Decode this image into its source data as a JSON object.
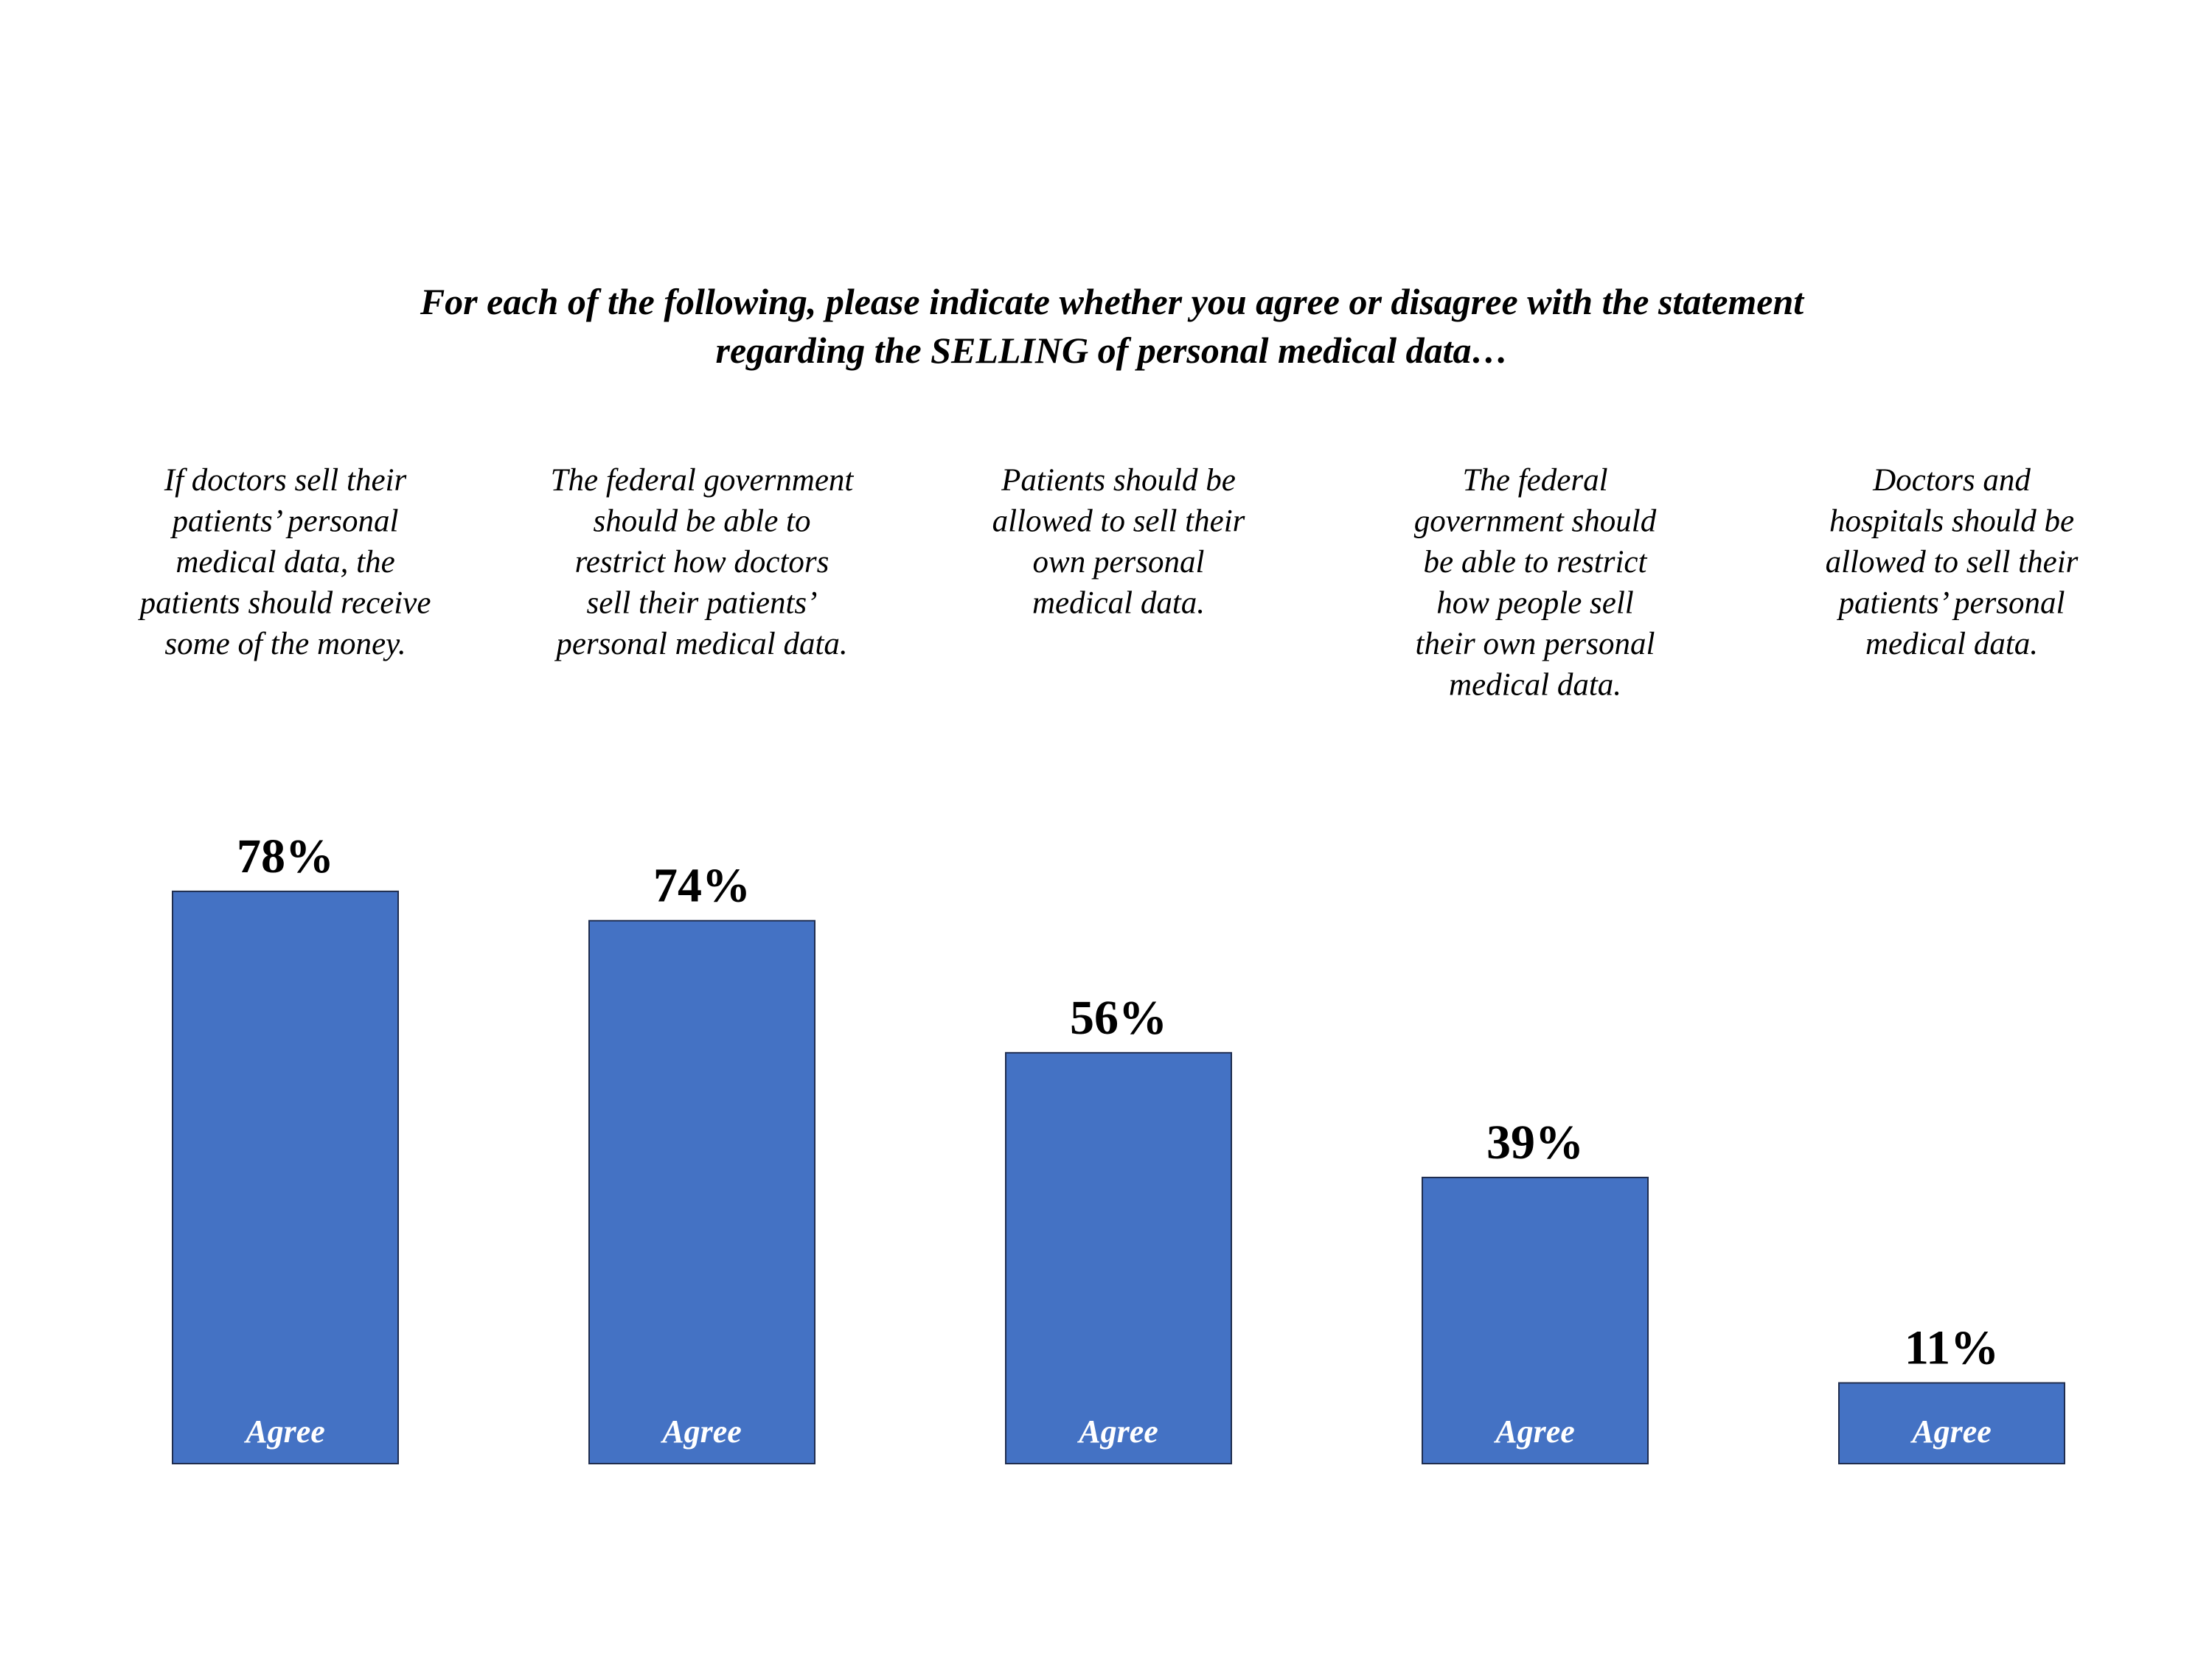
{
  "chart_data": {
    "type": "bar",
    "title_lines": [
      "For each of the following, please indicate whether you agree or disagree with the statement",
      "regarding the SELLING of personal medical data…"
    ],
    "categories": [
      [
        "If doctors sell their",
        "patients’ personal",
        "medical data, the",
        "patients should receive",
        "some of the money."
      ],
      [
        "The federal government",
        "should be able to",
        "restrict how doctors",
        "sell their patients’",
        "personal medical data."
      ],
      [
        "Patients should be",
        "allowed to sell their",
        "own personal",
        "medical data."
      ],
      [
        "The federal",
        "government should",
        "be able to restrict",
        "how people sell",
        "their own personal",
        "medical data."
      ],
      [
        "Doctors and",
        "hospitals should be",
        "allowed to sell their",
        "patients’ personal",
        "medical data."
      ]
    ],
    "values": [
      78,
      74,
      56,
      39,
      11
    ],
    "value_labels": [
      "78%",
      "74%",
      "56%",
      "39%",
      "11%"
    ],
    "bar_labels": [
      "Agree",
      "Agree",
      "Agree",
      "Agree",
      "Agree"
    ],
    "series": [
      {
        "values": [
          78,
          74,
          56,
          39,
          11
        ]
      }
    ],
    "ylim": [
      0,
      100
    ],
    "grid": false,
    "colors": {
      "bar": "#4472C4",
      "bar_border": "#1F2D4F",
      "bar_label": "#FFFFFF",
      "text": "#000000"
    }
  }
}
